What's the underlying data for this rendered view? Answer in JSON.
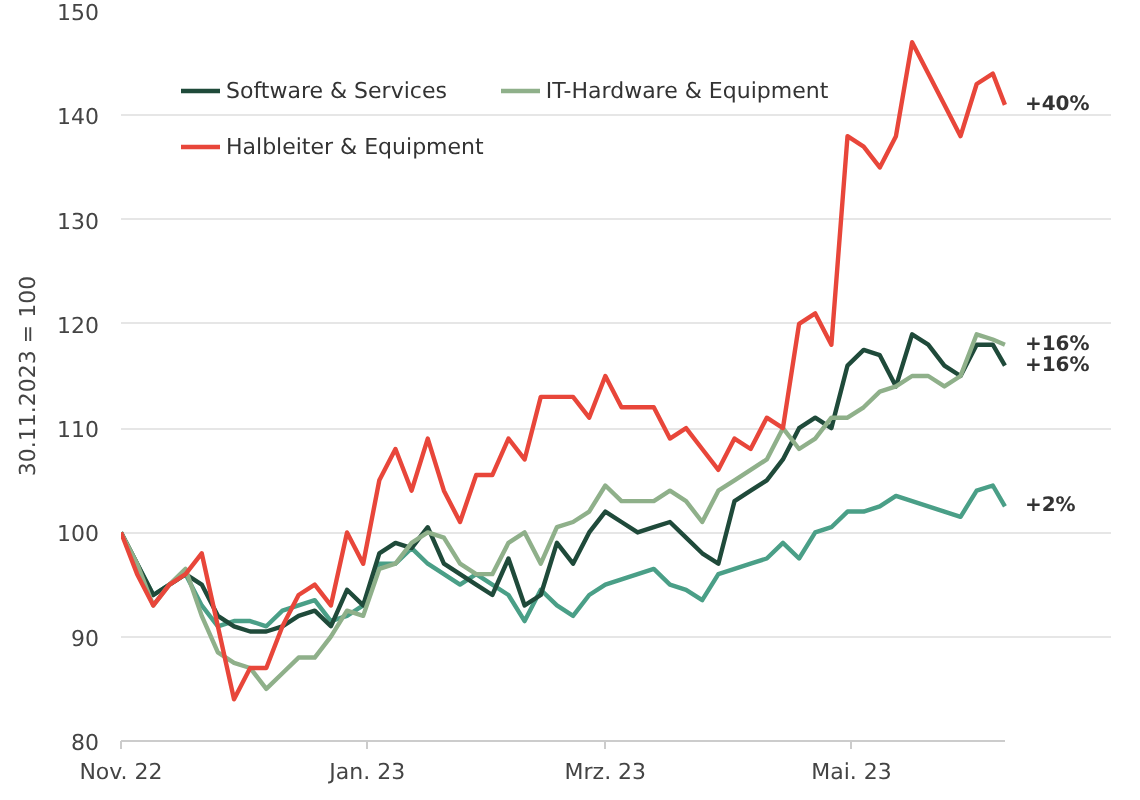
{
  "chart_data": {
    "type": "line",
    "ylabel": "30.11.2023 = 100",
    "x": [
      "2022-11-01",
      "2022-11-05",
      "2022-11-09",
      "2022-11-13",
      "2022-11-17",
      "2022-11-21",
      "2022-11-25",
      "2022-11-29",
      "2022-12-03",
      "2022-12-07",
      "2022-12-11",
      "2022-12-15",
      "2022-12-19",
      "2022-12-23",
      "2022-12-27",
      "2022-12-31",
      "2023-01-04",
      "2023-01-08",
      "2023-01-12",
      "2023-01-16",
      "2023-01-20",
      "2023-01-24",
      "2023-01-28",
      "2023-02-01",
      "2023-02-05",
      "2023-02-09",
      "2023-02-13",
      "2023-02-17",
      "2023-02-21",
      "2023-02-25",
      "2023-03-01",
      "2023-03-05",
      "2023-03-09",
      "2023-03-13",
      "2023-03-17",
      "2023-03-21",
      "2023-03-25",
      "2023-03-29",
      "2023-04-02",
      "2023-04-06",
      "2023-04-10",
      "2023-04-14",
      "2023-04-18",
      "2023-04-22",
      "2023-04-26",
      "2023-04-30",
      "2023-05-04",
      "2023-05-08",
      "2023-05-12",
      "2023-05-16",
      "2023-05-20",
      "2023-05-24",
      "2023-05-28",
      "2023-06-01",
      "2023-06-05",
      "2023-06-08"
    ],
    "series": [
      {
        "color": "#4a9f87",
        "values": [
          100,
          97,
          94,
          95,
          96,
          93,
          91,
          91.5,
          91.5,
          91,
          92.5,
          93,
          93.5,
          91.5,
          92,
          93,
          97,
          97,
          98.5,
          97,
          96,
          95,
          96,
          95,
          94,
          91.5,
          94.5,
          93,
          92,
          94,
          95,
          95.5,
          96,
          96.5,
          95,
          94.5,
          93.5,
          96,
          96.5,
          97,
          97.5,
          99,
          97.5,
          100,
          100.5,
          102,
          102,
          102.5,
          103.5,
          103,
          102.5,
          102,
          101.5,
          104,
          104.5,
          102.5
        ]
      },
      {
        "name": "Software & Services",
        "color": "#1f4a3a",
        "values": [
          100,
          97,
          94,
          95,
          96,
          95,
          92,
          91,
          90.5,
          90.5,
          91,
          92,
          92.5,
          91,
          94.5,
          93,
          98,
          99,
          98.5,
          100.5,
          97,
          96,
          95,
          94,
          97.5,
          93,
          94,
          99,
          97,
          100,
          102,
          101,
          100,
          100.5,
          101,
          99.5,
          98,
          97,
          103,
          104,
          105,
          107,
          110,
          111,
          110,
          116,
          117.5,
          117,
          114,
          119,
          118,
          116,
          115,
          118,
          118,
          116
        ]
      },
      {
        "name": "IT-Hardware & Equipment",
        "color": "#8fb08a",
        "values": [
          100,
          97,
          93,
          95,
          96.5,
          92,
          88.5,
          87.5,
          87,
          85,
          86.5,
          88,
          88,
          90,
          92.5,
          92,
          96.5,
          97,
          99,
          100,
          99.5,
          97,
          96,
          96,
          99,
          100,
          97,
          100.5,
          101,
          102,
          104.5,
          103,
          103,
          103,
          104,
          103,
          101,
          104,
          105,
          106,
          107,
          110,
          108,
          109,
          111,
          111,
          112,
          113.5,
          114,
          115,
          115,
          114,
          115,
          119,
          118.5,
          118
        ]
      },
      {
        "name": "Halbleiter & Equipment",
        "color": "#e8463a",
        "values": [
          100,
          96,
          93,
          95,
          96,
          98,
          91,
          84,
          87,
          87,
          91,
          94,
          95,
          93,
          100,
          97,
          105,
          108,
          104,
          109,
          104,
          101,
          105.5,
          105.5,
          109,
          107,
          113,
          113,
          113,
          111,
          115,
          112,
          112,
          112,
          109,
          110,
          108,
          106,
          109,
          108,
          111,
          110,
          120,
          121,
          118,
          138,
          137,
          135,
          138,
          147,
          144,
          141,
          138,
          143,
          144,
          141
        ]
      }
    ],
    "annotations": [
      {
        "text": "+40%",
        "x": "2023-06-08",
        "y": 141
      },
      {
        "text": "+16%",
        "x": "2023-06-08",
        "y": 118
      },
      {
        "text": "+16%",
        "x": "2023-06-08",
        "y": 116
      },
      {
        "text": "+2%",
        "x": "2023-06-08",
        "y": 102.5
      }
    ],
    "xlim": [
      "2022-11-01",
      "2023-06-08"
    ],
    "xticks": [
      {
        "value": "2022-11-01",
        "label": "Nov. 22"
      },
      {
        "value": "2023-01-01",
        "label": "Jan. 23"
      },
      {
        "value": "2023-03-01",
        "label": "Mrz. 23"
      },
      {
        "value": "2023-05-01",
        "label": "Mai. 23"
      }
    ],
    "ylim": [
      80,
      150
    ],
    "yticks": [
      80,
      90,
      100,
      110,
      120,
      130,
      140,
      150
    ],
    "grid": "y",
    "legend": "top left",
    "marker": "none",
    "line_style": "solid"
  }
}
